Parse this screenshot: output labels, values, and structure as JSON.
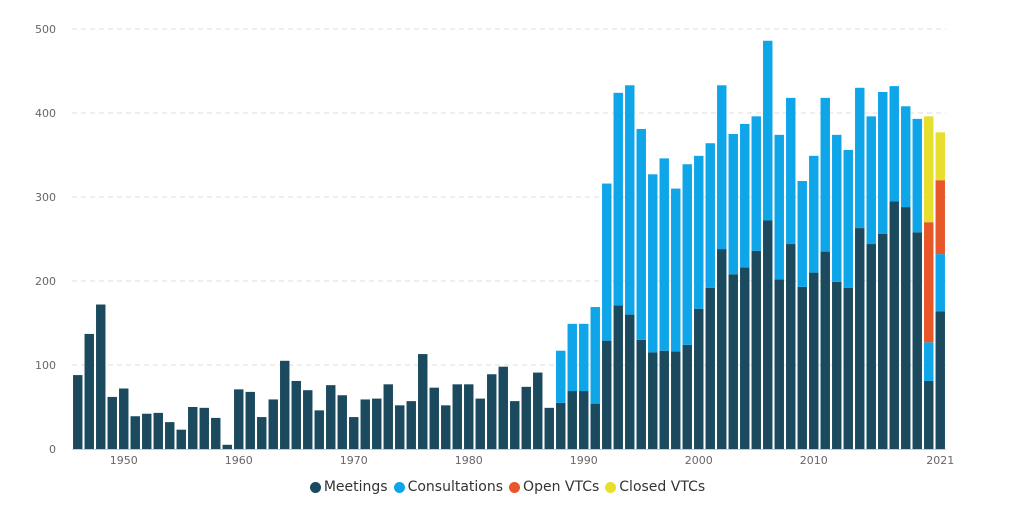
{
  "chart_data": {
    "type": "bar",
    "stacked": true,
    "years": [
      1946,
      1947,
      1948,
      1949,
      1950,
      1951,
      1952,
      1953,
      1954,
      1955,
      1956,
      1957,
      1958,
      1959,
      1960,
      1961,
      1962,
      1963,
      1964,
      1965,
      1966,
      1967,
      1968,
      1969,
      1970,
      1971,
      1972,
      1973,
      1974,
      1975,
      1976,
      1977,
      1978,
      1979,
      1980,
      1981,
      1982,
      1983,
      1984,
      1985,
      1986,
      1987,
      1988,
      1989,
      1990,
      1991,
      1992,
      1993,
      1994,
      1995,
      1996,
      1997,
      1998,
      1999,
      2000,
      2001,
      2002,
      2003,
      2004,
      2005,
      2006,
      2007,
      2008,
      2009,
      2010,
      2011,
      2012,
      2013,
      2014,
      2015,
      2016,
      2017,
      2018,
      2019,
      2020,
      2021
    ],
    "series": [
      {
        "name": "Meetings",
        "color": "#1b4a5e",
        "values": [
          88,
          137,
          172,
          62,
          72,
          39,
          42,
          43,
          32,
          23,
          50,
          49,
          37,
          5,
          71,
          68,
          38,
          59,
          105,
          81,
          70,
          46,
          76,
          64,
          38,
          59,
          60,
          77,
          52,
          57,
          113,
          73,
          52,
          77,
          77,
          60,
          89,
          98,
          57,
          74,
          91,
          49,
          55,
          69,
          69,
          54,
          129,
          171,
          160,
          130,
          115,
          117,
          116,
          124,
          167,
          192,
          238,
          208,
          216,
          236,
          272,
          202,
          244,
          193,
          210,
          235,
          199,
          192,
          263,
          244,
          256,
          295,
          288,
          258,
          81,
          164
        ]
      },
      {
        "name": "Consultations",
        "color": "#0ea5e9",
        "values": [
          0,
          0,
          0,
          0,
          0,
          0,
          0,
          0,
          0,
          0,
          0,
          0,
          0,
          0,
          0,
          0,
          0,
          0,
          0,
          0,
          0,
          0,
          0,
          0,
          0,
          0,
          0,
          0,
          0,
          0,
          0,
          0,
          0,
          0,
          0,
          0,
          0,
          0,
          0,
          0,
          0,
          0,
          62,
          80,
          80,
          115,
          187,
          253,
          273,
          251,
          212,
          229,
          194,
          215,
          182,
          172,
          195,
          167,
          171,
          160,
          214,
          172,
          174,
          126,
          139,
          183,
          175,
          164,
          167,
          152,
          169,
          137,
          120,
          135,
          46,
          68
        ]
      },
      {
        "name": "Open VTCs",
        "color": "#e8572a",
        "values": [
          0,
          0,
          0,
          0,
          0,
          0,
          0,
          0,
          0,
          0,
          0,
          0,
          0,
          0,
          0,
          0,
          0,
          0,
          0,
          0,
          0,
          0,
          0,
          0,
          0,
          0,
          0,
          0,
          0,
          0,
          0,
          0,
          0,
          0,
          0,
          0,
          0,
          0,
          0,
          0,
          0,
          0,
          0,
          0,
          0,
          0,
          0,
          0,
          0,
          0,
          0,
          0,
          0,
          0,
          0,
          0,
          0,
          0,
          0,
          0,
          0,
          0,
          0,
          0,
          0,
          0,
          0,
          0,
          0,
          0,
          0,
          0,
          0,
          0,
          143,
          88
        ]
      },
      {
        "name": "Closed VTCs",
        "color": "#e8de2e",
        "values": [
          0,
          0,
          0,
          0,
          0,
          0,
          0,
          0,
          0,
          0,
          0,
          0,
          0,
          0,
          0,
          0,
          0,
          0,
          0,
          0,
          0,
          0,
          0,
          0,
          0,
          0,
          0,
          0,
          0,
          0,
          0,
          0,
          0,
          0,
          0,
          0,
          0,
          0,
          0,
          0,
          0,
          0,
          0,
          0,
          0,
          0,
          0,
          0,
          0,
          0,
          0,
          0,
          0,
          0,
          0,
          0,
          0,
          0,
          0,
          0,
          0,
          0,
          0,
          0,
          0,
          0,
          0,
          0,
          0,
          0,
          0,
          0,
          0,
          0,
          126,
          57
        ]
      }
    ],
    "y_ticks": [
      "0",
      "100",
      "200",
      "300",
      "400",
      "500"
    ],
    "x_tick_labels": [
      {
        "year": 1950,
        "label": "1950"
      },
      {
        "year": 1960,
        "label": "1960"
      },
      {
        "year": 1970,
        "label": "1970"
      },
      {
        "year": 1980,
        "label": "1980"
      },
      {
        "year": 1990,
        "label": "1990"
      },
      {
        "year": 2000,
        "label": "2000"
      },
      {
        "year": 2010,
        "label": "2010"
      },
      {
        "year": 2021,
        "label": "2021"
      }
    ],
    "ylim": [
      0,
      500
    ],
    "grid": true,
    "legend_position": "bottom-center"
  }
}
